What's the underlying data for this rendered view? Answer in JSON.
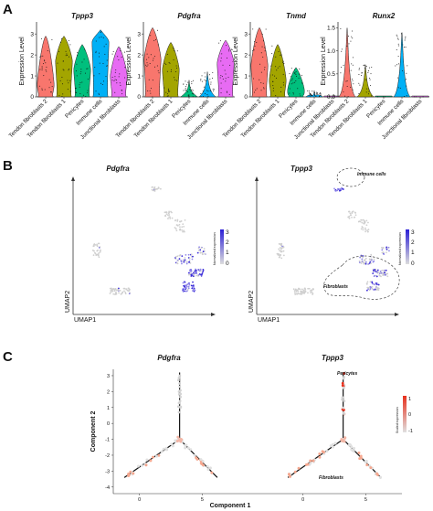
{
  "panels": {
    "A": {
      "letter": "A",
      "ylabel": "Expression Level",
      "categories": [
        "Tendon fibroblasts 2",
        "Tendon fibroblasts 1",
        "Pericytes",
        "Immune cells",
        "Junctional fibroblasts"
      ],
      "colors": [
        "#f8766d",
        "#a3a500",
        "#00bf7d",
        "#00b0f6",
        "#e76bf3"
      ]
    },
    "B": {
      "letter": "B",
      "xlabel": "UMAP1",
      "ylabel": "UMAP2",
      "legend_title": "Normalized expression",
      "legend_ticks": [
        "3",
        "2",
        "1",
        "0"
      ],
      "annotations": [
        "Immune cells",
        "Fibroblasts"
      ]
    },
    "C": {
      "letter": "C",
      "xlabel": "Component 1",
      "ylabel": "Component 2",
      "legend_title": "Scaled expression",
      "legend_ticks": [
        "1",
        "0",
        "-1"
      ],
      "annotations": [
        "Pericytes",
        "Fibroblasts"
      ]
    }
  },
  "chart_data": [
    {
      "type": "violin",
      "title": "Tppp3",
      "ylabel": "Expression Level",
      "categories": [
        "Tendon fibroblasts 2",
        "Tendon fibroblasts 1",
        "Pericytes",
        "Immune cells",
        "Junctional fibroblasts"
      ],
      "yticks": [
        0,
        1,
        2,
        3
      ],
      "ylim": [
        0,
        3.4
      ],
      "medians": [
        0.6,
        1.7,
        1.3,
        2.6,
        1.0
      ],
      "max": [
        2.9,
        2.9,
        2.5,
        3.2,
        2.4
      ]
    },
    {
      "type": "violin",
      "title": "Pdgfra",
      "ylabel": "Expression Level",
      "categories": [
        "Tendon fibroblasts 2",
        "Tendon fibroblasts 1",
        "Pericytes",
        "Immune cells",
        "Junctional fibroblasts"
      ],
      "yticks": [
        0,
        1,
        2,
        3
      ],
      "ylim": [
        0,
        3.4
      ],
      "medians": [
        1.8,
        1.3,
        0.0,
        0.0,
        1.6
      ],
      "max": [
        3.3,
        2.6,
        0.8,
        1.2,
        2.7
      ]
    },
    {
      "type": "violin",
      "title": "Tnmd",
      "ylabel": "Expression Level",
      "categories": [
        "Tendon fibroblasts 2",
        "Tendon fibroblasts 1",
        "Pericytes",
        "Immune cells",
        "Junctional fibroblasts"
      ],
      "yticks": [
        0,
        1,
        2,
        3
      ],
      "ylim": [
        0,
        3.4
      ],
      "medians": [
        1.5,
        0.8,
        0.3,
        0.0,
        0.0
      ],
      "max": [
        3.3,
        2.5,
        1.4,
        0.3,
        0.1
      ]
    },
    {
      "type": "violin",
      "title": "Runx2",
      "ylabel": "Expression Level",
      "categories": [
        "Tendon fibroblasts 2",
        "Tendon fibroblasts 1",
        "Pericytes",
        "Immune cells",
        "Junctional fibroblasts"
      ],
      "yticks": [
        0.0,
        0.5,
        1.0,
        1.5
      ],
      "ylim": [
        0,
        1.55
      ],
      "medians": [
        0.0,
        0.0,
        0.0,
        0.0,
        0.0
      ],
      "max": [
        1.5,
        0.7,
        0.0,
        1.4,
        0.0
      ]
    },
    {
      "type": "scatter",
      "title": "Pdgfra",
      "xlabel": "UMAP1",
      "ylabel": "UMAP2",
      "legend_ticks": [
        3,
        2,
        1,
        0
      ]
    },
    {
      "type": "scatter",
      "title": "Tppp3",
      "xlabel": "UMAP1",
      "ylabel": "UMAP2",
      "legend_ticks": [
        3,
        2,
        1,
        0
      ]
    },
    {
      "type": "line",
      "title": "Pdgfra",
      "xlabel": "Component 1",
      "ylabel": "Component 2",
      "xticks": [
        0,
        5
      ],
      "yticks": [
        -4,
        -3,
        -2,
        -1,
        0,
        1,
        2,
        3
      ],
      "xlim": [
        -1.5,
        6.5
      ],
      "ylim": [
        -4.3,
        3.4
      ]
    },
    {
      "type": "line",
      "title": "Tppp3",
      "xlabel": "Component 1",
      "ylabel": "Component 2",
      "xticks": [
        0,
        5
      ],
      "xlim": [
        -1.5,
        6.5
      ],
      "ylim": [
        -4.3,
        3.4
      ]
    }
  ]
}
